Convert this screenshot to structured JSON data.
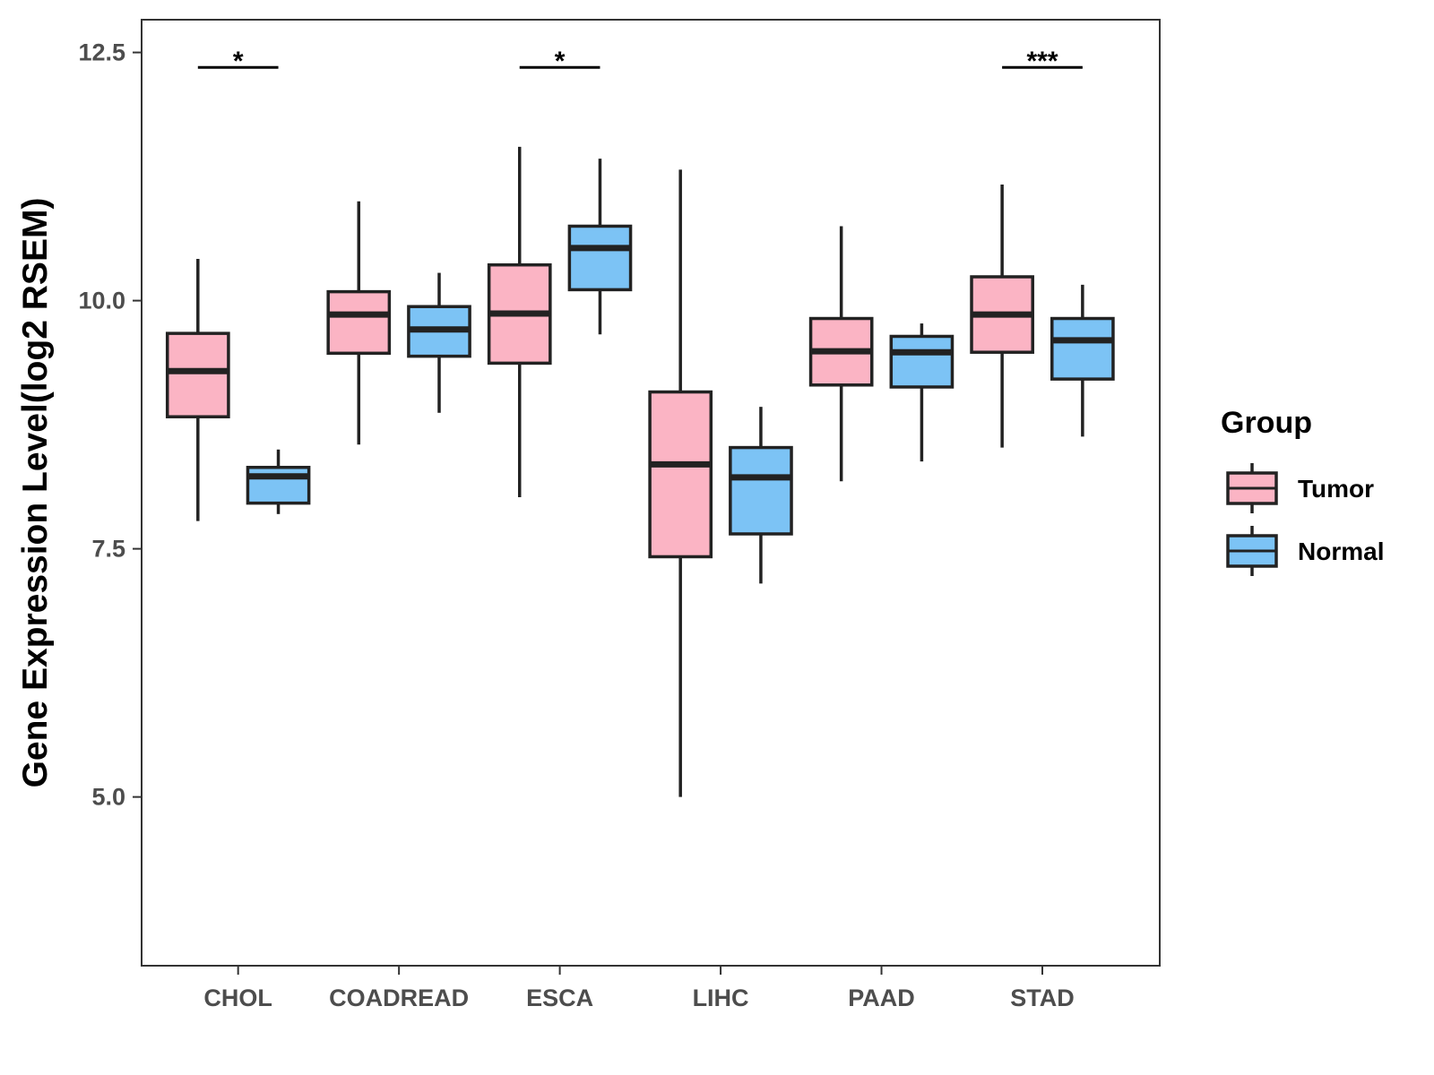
{
  "chart_data": {
    "type": "boxplot",
    "xlabel": "",
    "ylabel": "Gene Expression Level(log2 RSEM)",
    "ylim": [
      3.3,
      12.83
    ],
    "yticks": [
      5.0,
      7.5,
      10.0,
      12.5
    ],
    "ytick_labels": [
      "5.0",
      "7.5",
      "10.0",
      "12.5"
    ],
    "categories": [
      "CHOL",
      "COADREAD",
      "ESCA",
      "LIHC",
      "PAAD",
      "STAD"
    ],
    "legend_title": "Group",
    "series": [
      {
        "name": "Tumor",
        "color": "#FBB4C4",
        "boxes": [
          {
            "whisker_low": 7.78,
            "q1": 8.83,
            "median": 9.29,
            "q3": 9.67,
            "whisker_high": 10.42
          },
          {
            "whisker_low": 8.55,
            "q1": 9.47,
            "median": 9.86,
            "q3": 10.09,
            "whisker_high": 11.0
          },
          {
            "whisker_low": 8.02,
            "q1": 9.37,
            "median": 9.87,
            "q3": 10.36,
            "whisker_high": 11.55
          },
          {
            "whisker_low": 5.0,
            "q1": 7.42,
            "median": 8.35,
            "q3": 9.08,
            "whisker_high": 11.32
          },
          {
            "whisker_low": 8.18,
            "q1": 9.15,
            "median": 9.49,
            "q3": 9.82,
            "whisker_high": 10.75
          },
          {
            "whisker_low": 8.52,
            "q1": 9.48,
            "median": 9.86,
            "q3": 10.24,
            "whisker_high": 11.17
          }
        ]
      },
      {
        "name": "Normal",
        "color": "#7CC3F5",
        "boxes": [
          {
            "whisker_low": 7.85,
            "q1": 7.96,
            "median": 8.23,
            "q3": 8.32,
            "whisker_high": 8.5
          },
          {
            "whisker_low": 8.87,
            "q1": 9.44,
            "median": 9.71,
            "q3": 9.94,
            "whisker_high": 10.28
          },
          {
            "whisker_low": 9.66,
            "q1": 10.11,
            "median": 10.53,
            "q3": 10.75,
            "whisker_high": 11.43
          },
          {
            "whisker_low": 7.15,
            "q1": 7.65,
            "median": 8.22,
            "q3": 8.52,
            "whisker_high": 8.93
          },
          {
            "whisker_low": 8.38,
            "q1": 9.13,
            "median": 9.48,
            "q3": 9.64,
            "whisker_high": 9.77
          },
          {
            "whisker_low": 8.63,
            "q1": 9.21,
            "median": 9.6,
            "q3": 9.82,
            "whisker_high": 10.16
          }
        ]
      }
    ],
    "significance": [
      {
        "category": "CHOL",
        "label": "*",
        "y": 12.35
      },
      {
        "category": "ESCA",
        "label": "*",
        "y": 12.35
      },
      {
        "category": "STAD",
        "label": "***",
        "y": 12.35
      }
    ]
  }
}
